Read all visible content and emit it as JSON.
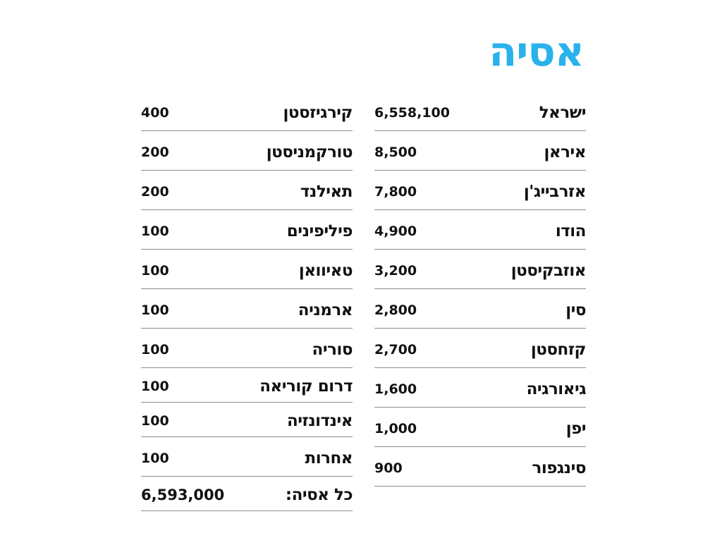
{
  "title": "אסיה",
  "colors": {
    "title": "#29b2ec",
    "text": "#111111",
    "rule": "#8c8c8c"
  },
  "right_column": [
    {
      "country": "ישראל",
      "value": "6,558,100"
    },
    {
      "country": "איראן",
      "value": "8,500"
    },
    {
      "country": "אזרבייג'ן",
      "value": "7,800"
    },
    {
      "country": "הודו",
      "value": "4,900"
    },
    {
      "country": "אוזבקיסטן",
      "value": "3,200"
    },
    {
      "country": "סין",
      "value": "2,800"
    },
    {
      "country": "קזחסטן",
      "value": "2,700"
    },
    {
      "country": "גיאורגיה",
      "value": "1,600"
    },
    {
      "country": "יפן",
      "value": "1,000"
    },
    {
      "country": "סינגפור",
      "value": "900"
    }
  ],
  "left_column": [
    {
      "country": "קירגיזסטן",
      "value": "400"
    },
    {
      "country": "טורקמניסטן",
      "value": "200"
    },
    {
      "country": "תאילנד",
      "value": "200"
    },
    {
      "country": "פיליפינים",
      "value": "100"
    },
    {
      "country": "טאיוואן",
      "value": "100"
    },
    {
      "country": "ארמניה",
      "value": "100"
    },
    {
      "country": "סוריה",
      "value": "100"
    },
    {
      "country": "דרום קוריאה",
      "value": "100"
    },
    {
      "country": "אינדונזיה",
      "value": "100"
    },
    {
      "country": "אחרות",
      "value": "100"
    }
  ],
  "total": {
    "label": "כל אסיה:",
    "value": "6,593,000"
  }
}
